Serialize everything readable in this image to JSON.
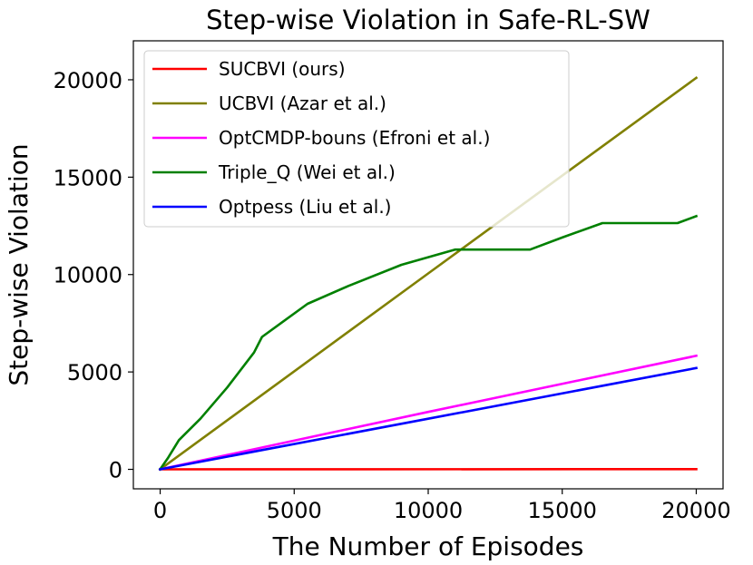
{
  "chart_data": {
    "type": "line",
    "title": "Step-wise Violation in Safe-RL-SW",
    "xlabel": "The Number of Episodes",
    "ylabel": "Step-wise Violation",
    "xlim": [
      -1000,
      21000
    ],
    "ylim": [
      -1000,
      22000
    ],
    "xticks": [
      0,
      5000,
      10000,
      15000,
      20000
    ],
    "yticks": [
      0,
      5000,
      10000,
      15000,
      20000
    ],
    "grid": false,
    "legend_position": "top-left",
    "series": [
      {
        "name": "SUCBVI (ours)",
        "color": "#ff0000",
        "points": [
          [
            0,
            0
          ],
          [
            20000,
            10
          ]
        ]
      },
      {
        "name": "UCBVI (Azar et al.)",
        "color": "#808000",
        "points": [
          [
            0,
            0
          ],
          [
            10000,
            10060
          ],
          [
            20000,
            20100
          ]
        ]
      },
      {
        "name": "OptCMDP-bouns (Efroni et al.)",
        "color": "#ff00ff",
        "points": [
          [
            0,
            0
          ],
          [
            10000,
            2950
          ],
          [
            20000,
            5830
          ]
        ]
      },
      {
        "name": "Triple_Q (Wei et al.)",
        "color": "#008000",
        "points": [
          [
            0,
            0
          ],
          [
            300,
            600
          ],
          [
            700,
            1500
          ],
          [
            1500,
            2600
          ],
          [
            2500,
            4200
          ],
          [
            3500,
            6000
          ],
          [
            3800,
            6800
          ],
          [
            4500,
            7500
          ],
          [
            5500,
            8500
          ],
          [
            7000,
            9400
          ],
          [
            9000,
            10500
          ],
          [
            11000,
            11280
          ],
          [
            13800,
            11280
          ],
          [
            15000,
            11900
          ],
          [
            16500,
            12640
          ],
          [
            19300,
            12640
          ],
          [
            20000,
            13000
          ]
        ]
      },
      {
        "name": "Optpess (Liu et al.)",
        "color": "#0000ff",
        "points": [
          [
            0,
            0
          ],
          [
            10000,
            2600
          ],
          [
            20000,
            5200
          ]
        ]
      }
    ]
  }
}
